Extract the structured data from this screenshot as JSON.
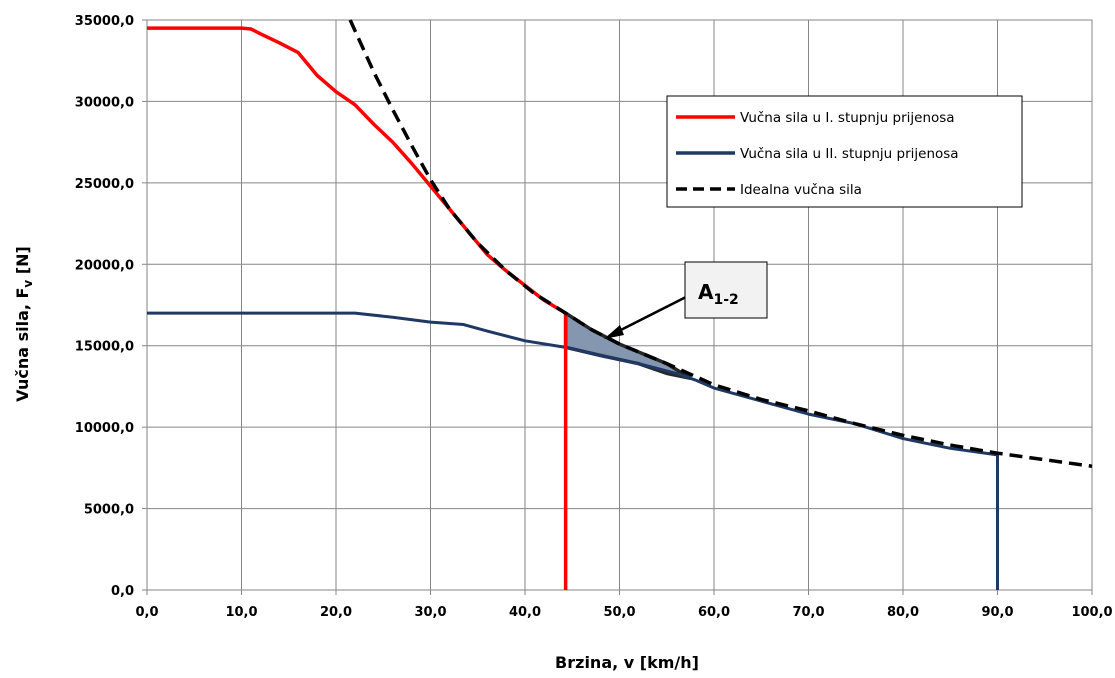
{
  "chart_data": {
    "type": "line",
    "xlabel": "Brzina, v [km/h]",
    "ylabel": {
      "main": "Vučna sila, F",
      "sub": "v",
      "unit": " [N]"
    },
    "xlim": [
      0,
      100
    ],
    "ylim": [
      0,
      35000
    ],
    "xticks": [
      0,
      10,
      20,
      30,
      40,
      50,
      60,
      70,
      80,
      90,
      100
    ],
    "yticks": [
      0,
      5000,
      10000,
      15000,
      20000,
      25000,
      30000,
      35000
    ],
    "xtick_labels": [
      "0,0",
      "10,0",
      "20,0",
      "30,0",
      "40,0",
      "50,0",
      "60,0",
      "70,0",
      "80,0",
      "90,0",
      "100,0"
    ],
    "ytick_labels": [
      "0,0",
      "5000,0",
      "10000,0",
      "15000,0",
      "20000,0",
      "25000,0",
      "30000,0",
      "35000,0"
    ],
    "grid": true,
    "legend_position": "top-right",
    "series": [
      {
        "name": "Vučna sila u I. stupnju prijenosa",
        "color": "#ff0000",
        "style": "solid",
        "points": [
          [
            0,
            34500
          ],
          [
            10,
            34500
          ],
          [
            11,
            34450
          ],
          [
            12,
            34150
          ],
          [
            14,
            33600
          ],
          [
            16,
            33000
          ],
          [
            18,
            31600
          ],
          [
            20,
            30600
          ],
          [
            22,
            29800
          ],
          [
            24,
            28600
          ],
          [
            26,
            27500
          ],
          [
            28,
            26200
          ],
          [
            30,
            24800
          ],
          [
            32,
            23400
          ],
          [
            34,
            22000
          ],
          [
            36,
            20600
          ],
          [
            38,
            19600
          ],
          [
            40,
            18700
          ],
          [
            42,
            17800
          ],
          [
            44.3,
            17000
          ],
          [
            44.3,
            0
          ]
        ]
      },
      {
        "name": "Vučna sila u II. stupnju prijenosa",
        "color": "#1f3864",
        "style": "solid",
        "points": [
          [
            0,
            17000
          ],
          [
            22,
            17000
          ],
          [
            26,
            16750
          ],
          [
            30,
            16450
          ],
          [
            33.5,
            16300
          ],
          [
            36,
            15900
          ],
          [
            40,
            15300
          ],
          [
            44.3,
            14900
          ],
          [
            48,
            14400
          ],
          [
            52,
            13900
          ],
          [
            56,
            13300
          ],
          [
            58,
            12900
          ],
          [
            60,
            12400
          ],
          [
            65,
            11600
          ],
          [
            70,
            10800
          ],
          [
            75,
            10200
          ],
          [
            80,
            9300
          ],
          [
            85,
            8700
          ],
          [
            90,
            8300
          ],
          [
            90,
            0
          ]
        ]
      },
      {
        "name": "Idealna vučna sila",
        "color": "#000000",
        "style": "dashed",
        "points": [
          [
            21.5,
            35000
          ],
          [
            24,
            31800
          ],
          [
            26,
            29500
          ],
          [
            28,
            27300
          ],
          [
            30,
            25200
          ],
          [
            32,
            23400
          ],
          [
            35,
            21300
          ],
          [
            38,
            19600
          ],
          [
            41,
            18200
          ],
          [
            44.3,
            17000
          ],
          [
            47,
            16000
          ],
          [
            50,
            15100
          ],
          [
            55,
            13900
          ],
          [
            60,
            12600
          ],
          [
            65,
            11700
          ],
          [
            70,
            11000
          ],
          [
            75,
            10200
          ],
          [
            80,
            9500
          ],
          [
            85,
            8900
          ],
          [
            90,
            8400
          ],
          [
            95,
            8000
          ],
          [
            100,
            7600
          ]
        ]
      }
    ],
    "shaded_area": {
      "label": "A",
      "label_sub": "1-2",
      "color": "#8496b0",
      "points": [
        [
          44.3,
          17000
        ],
        [
          47,
          16000
        ],
        [
          50,
          15100
        ],
        [
          55,
          13900
        ],
        [
          57.5,
          13000
        ],
        [
          55,
          13300
        ],
        [
          52,
          13900
        ],
        [
          48,
          14400
        ],
        [
          44.3,
          14900
        ]
      ]
    }
  }
}
